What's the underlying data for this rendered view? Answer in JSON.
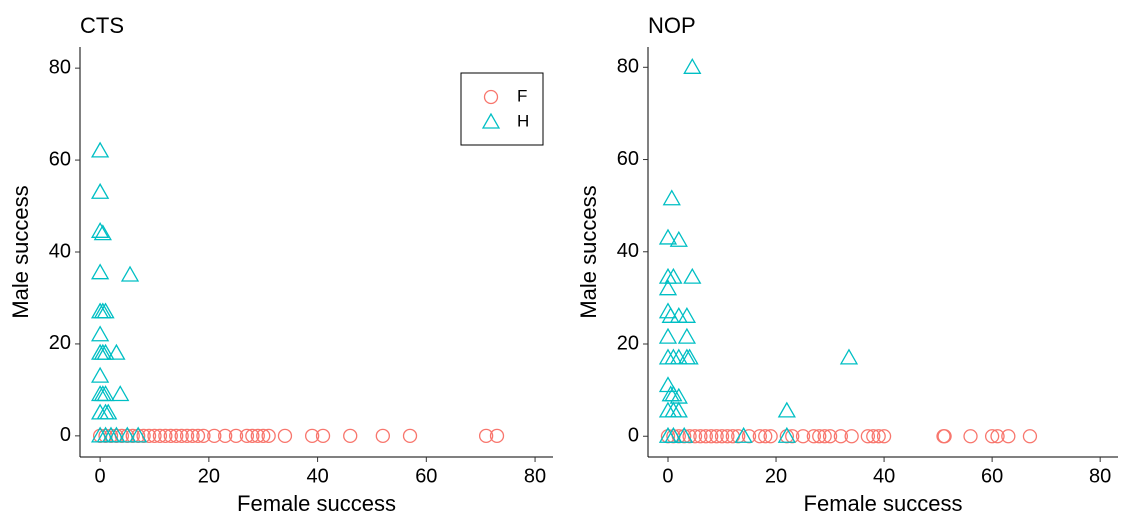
{
  "chart_data": [
    {
      "type": "scatter",
      "title": "CTS",
      "xlabel": "Female success",
      "ylabel": "Male success",
      "xlim": [
        -3.7,
        83.3
      ],
      "ylim": [
        -4.6,
        84.6
      ],
      "xticks": [
        0,
        20,
        40,
        60,
        80
      ],
      "yticks": [
        0,
        20,
        40,
        60,
        80
      ],
      "legend": "top-right",
      "series": [
        {
          "name": "F",
          "color": "#F8766D",
          "marker": "circle",
          "x": [
            0,
            1,
            2,
            3,
            4,
            5,
            6,
            7,
            8,
            9,
            10,
            11,
            12,
            13,
            14,
            15,
            16,
            17,
            18,
            19,
            21,
            23,
            25,
            27,
            28,
            29,
            30,
            31,
            34,
            39,
            41,
            46,
            52,
            57,
            71,
            73
          ],
          "values": [
            0,
            0,
            0,
            0,
            0,
            0,
            0,
            0,
            0,
            0,
            0,
            0,
            0,
            0,
            0,
            0,
            0,
            0,
            0,
            0,
            0,
            0,
            0,
            0,
            0,
            0,
            0,
            0,
            0,
            0,
            0,
            0,
            0,
            0,
            0,
            0
          ]
        },
        {
          "name": "H",
          "color": "#00BFC4",
          "marker": "triangle",
          "x": [
            0,
            0,
            0,
            0,
            0,
            0,
            0,
            0,
            0,
            0,
            0,
            0.5,
            0.5,
            0.5,
            0.5,
            1,
            1,
            1,
            1,
            5.5,
            3,
            3.7,
            1.5,
            1,
            2,
            3,
            5,
            7
          ],
          "values": [
            62,
            53,
            44.5,
            35.5,
            27,
            22,
            18,
            13,
            9,
            5,
            0,
            44,
            27,
            18,
            9,
            27,
            18,
            9,
            5,
            35,
            18,
            9,
            5,
            0,
            0,
            0,
            0,
            0
          ]
        }
      ]
    },
    {
      "type": "scatter",
      "title": "NOP",
      "xlabel": "Female success",
      "ylabel": "Male success",
      "xlim": [
        -3.7,
        83.3
      ],
      "ylim": [
        -4.5,
        84.4
      ],
      "xticks": [
        0,
        20,
        40,
        60,
        80
      ],
      "yticks": [
        0,
        20,
        40,
        60,
        80
      ],
      "series": [
        {
          "color": "#F8766D",
          "marker": "circle",
          "x": [
            0,
            1,
            2,
            3,
            4,
            5,
            6,
            7,
            8,
            9,
            10,
            11,
            12,
            13,
            15,
            17,
            18,
            19,
            22,
            23,
            25,
            27,
            28,
            29,
            30,
            32,
            34,
            37,
            38,
            39,
            40,
            51,
            51.2,
            56,
            60,
            61,
            63,
            67
          ],
          "values": [
            0,
            0,
            0,
            0,
            0,
            0,
            0,
            0,
            0,
            0,
            0,
            0,
            0,
            0,
            0,
            0,
            0,
            0,
            0,
            0,
            0,
            0,
            0,
            0,
            0,
            0,
            0,
            0,
            0,
            0,
            0,
            0,
            0,
            0,
            0,
            0,
            0,
            0
          ]
        },
        {
          "color": "#00BFC4",
          "marker": "triangle",
          "x": [
            4.5,
            0.7,
            0,
            2,
            0,
            1,
            4.5,
            0,
            0,
            0.5,
            2,
            3.5,
            0,
            3.5,
            0,
            1,
            2,
            3.5,
            4,
            33.5,
            0,
            0.5,
            1,
            2,
            0,
            1,
            2,
            22,
            0,
            14,
            22,
            3,
            1
          ],
          "values": [
            80,
            51.5,
            43,
            42.5,
            34.5,
            34.5,
            34.5,
            32,
            27,
            26,
            26,
            26,
            21.5,
            21.5,
            17,
            17,
            17,
            17,
            17,
            17,
            11,
            9,
            9,
            8.5,
            5.5,
            5.5,
            5.5,
            5.5,
            0,
            0,
            0,
            0,
            0
          ]
        }
      ]
    }
  ]
}
